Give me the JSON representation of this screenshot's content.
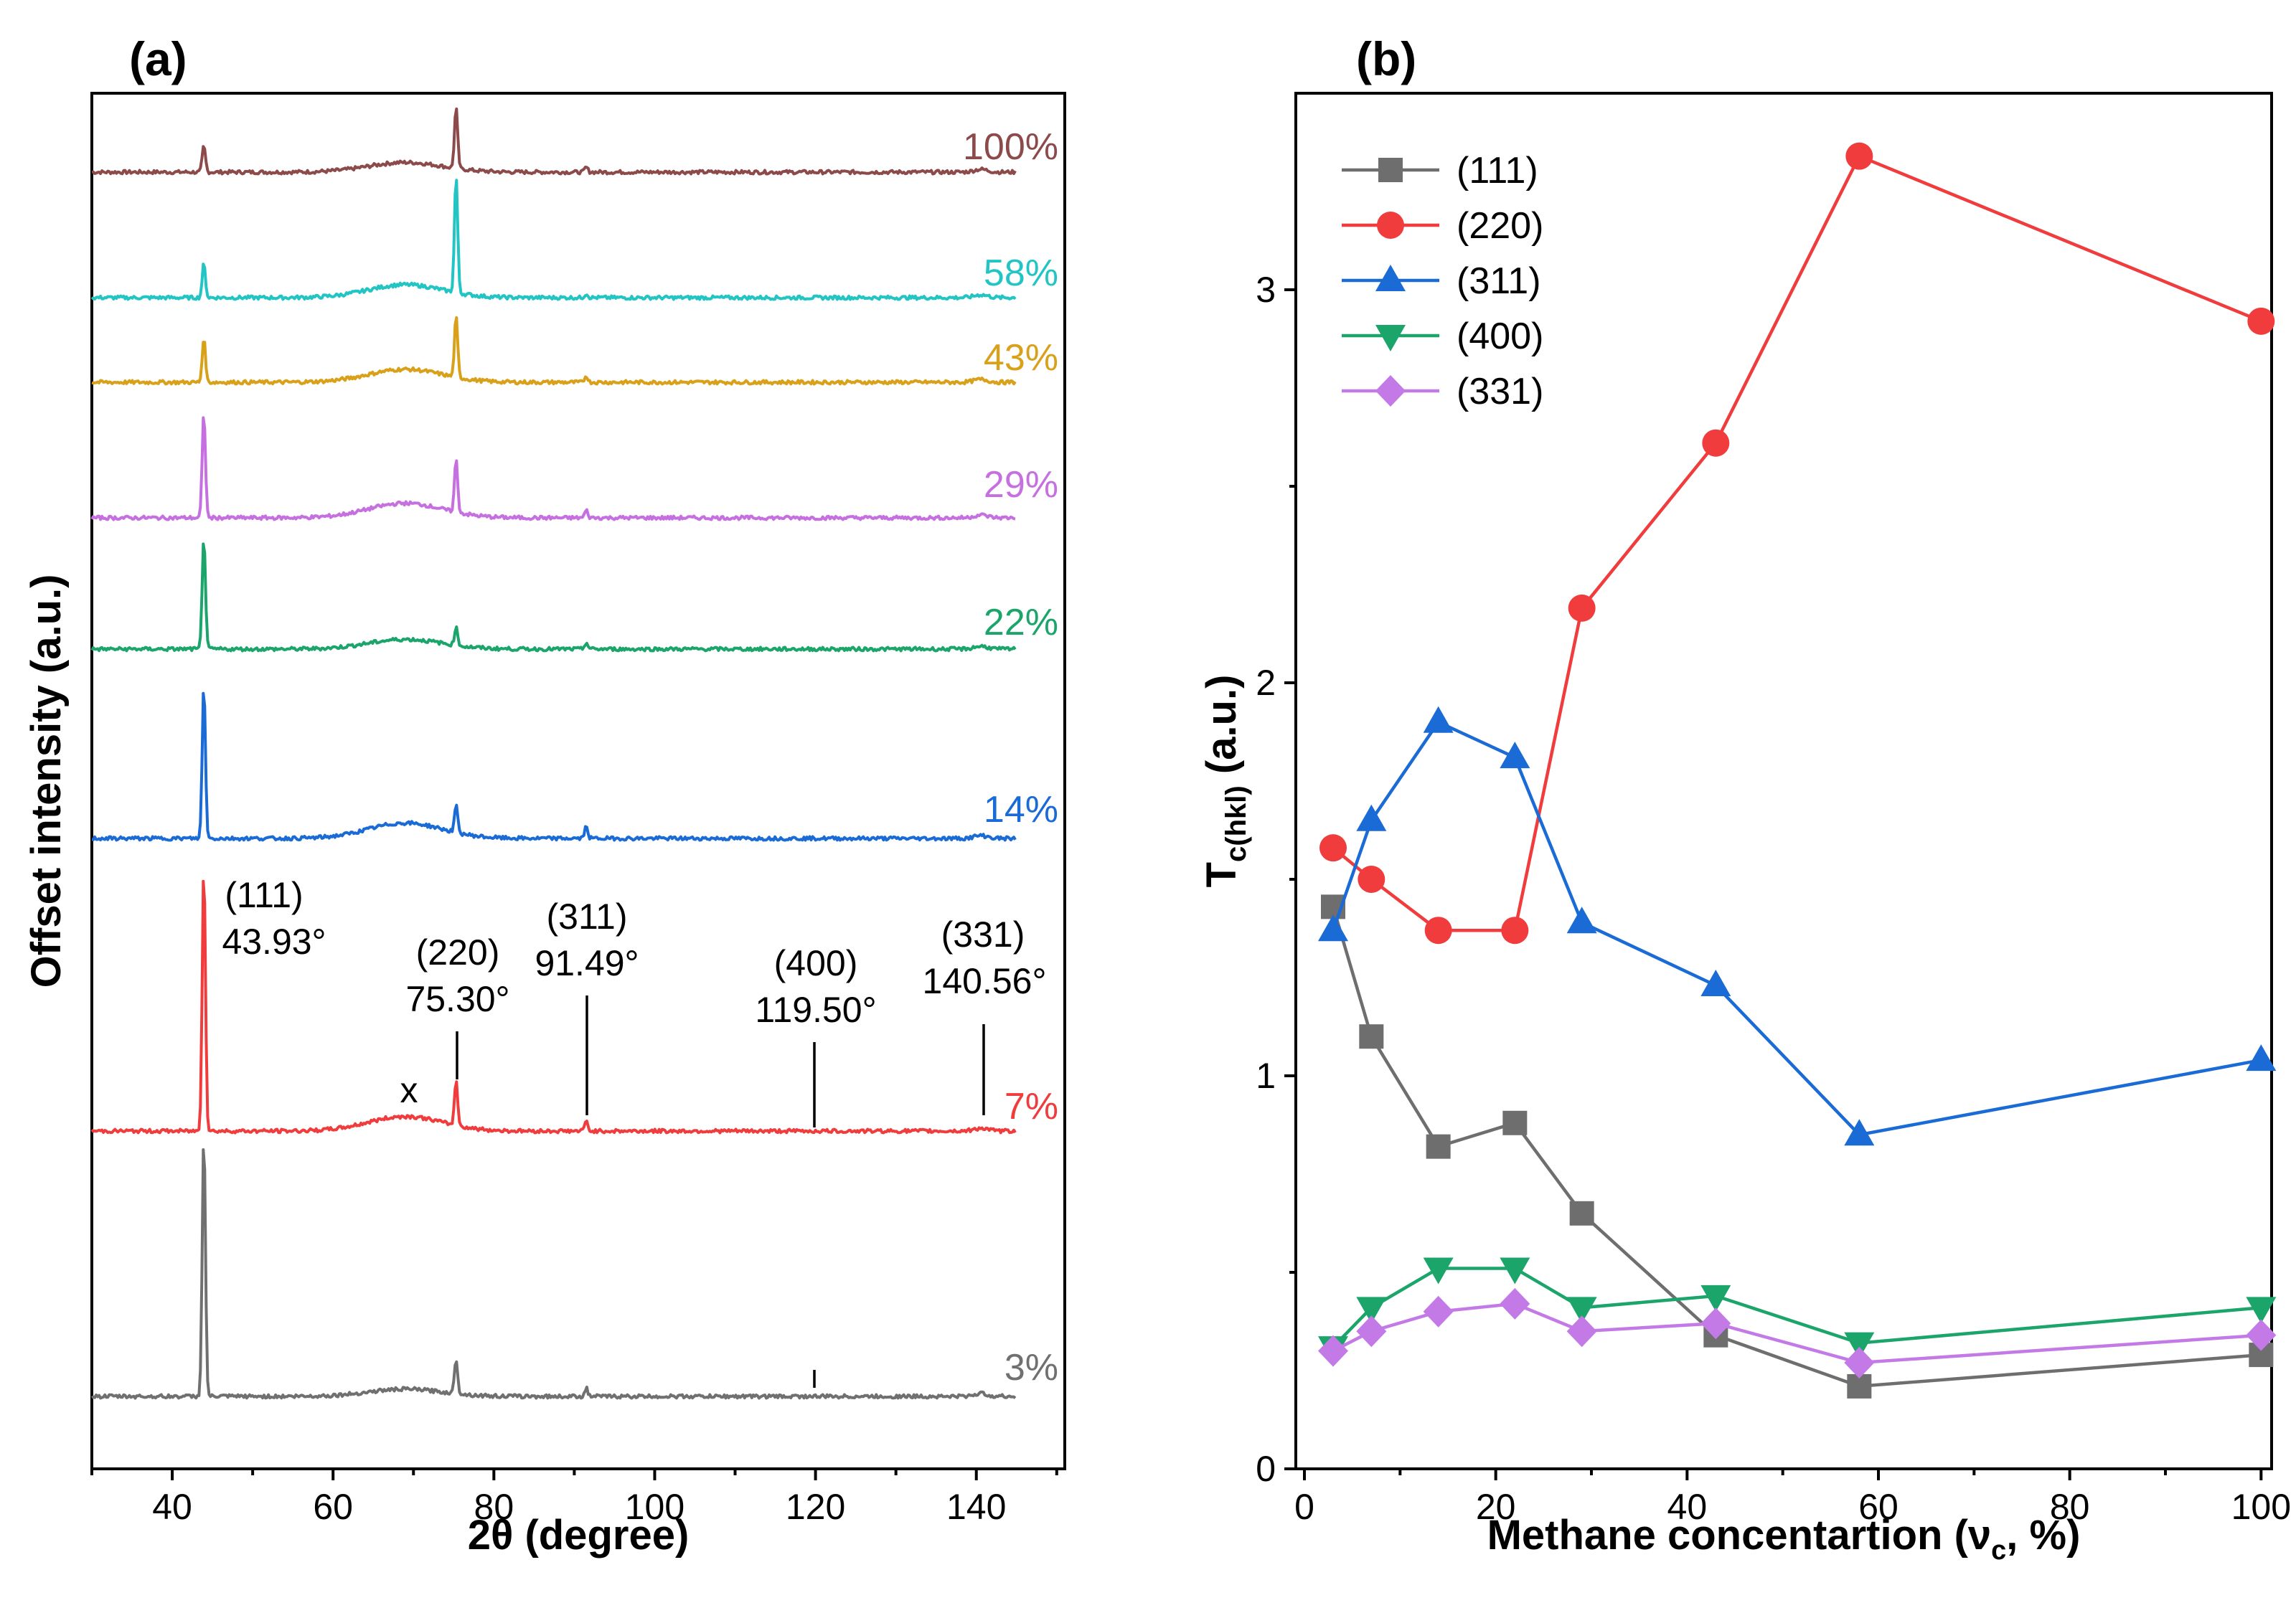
{
  "panel_a": {
    "label": "(a)",
    "annotations": {
      "peak_111": [
        "(111)",
        "43.93°"
      ],
      "peak_220": [
        "(220)",
        "75.30°"
      ],
      "peak_311": [
        "(311)",
        "91.49°"
      ],
      "peak_400": [
        "(400)",
        "119.50°"
      ],
      "peak_331": [
        "(331)",
        "140.56°"
      ],
      "x_mark": "x"
    }
  },
  "panel_b": {
    "label": "(b)"
  },
  "chart_data": [
    {
      "type": "line",
      "title": "(a)",
      "xlabel": "2θ (degree)",
      "ylabel": "Offset intensity (a.u.)",
      "xlim": [
        30,
        151
      ],
      "xticks": [
        40,
        60,
        80,
        100,
        120,
        140
      ],
      "yticks_shown": false,
      "peak_positions": [
        43.93,
        75.3,
        91.49,
        119.5,
        140.56
      ],
      "broad_feature_center": 69,
      "series": [
        {
          "name": "100%",
          "color": "#8c4a4a",
          "peaks": [
            {
              "x": 43.93,
              "h": 3.2
            },
            {
              "x": 75.3,
              "h": 7.5
            },
            {
              "x": 91.49,
              "h": 0.6
            }
          ],
          "hump": 1.2
        },
        {
          "name": "58%",
          "color": "#22c4c4",
          "peaks": [
            {
              "x": 43.93,
              "h": 4.2
            },
            {
              "x": 75.3,
              "h": 14.5
            },
            {
              "x": 91.49,
              "h": 0.5
            }
          ],
          "hump": 1.6
        },
        {
          "name": "43%",
          "color": "#d9a019",
          "peaks": [
            {
              "x": 43.93,
              "h": 5.5
            },
            {
              "x": 75.3,
              "h": 7.5
            },
            {
              "x": 91.49,
              "h": 0.8
            }
          ],
          "hump": 1.6
        },
        {
          "name": "29%",
          "color": "#c66fe0",
          "peaks": [
            {
              "x": 43.93,
              "h": 13.0
            },
            {
              "x": 75.3,
              "h": 6.5
            },
            {
              "x": 91.49,
              "h": 0.9
            }
          ],
          "hump": 1.8
        },
        {
          "name": "22%",
          "color": "#1ca56a",
          "peaks": [
            {
              "x": 43.93,
              "h": 14.0
            },
            {
              "x": 75.3,
              "h": 2.2
            },
            {
              "x": 91.49,
              "h": 0.8
            }
          ],
          "hump": 1.2
        },
        {
          "name": "14%",
          "color": "#1a6bd6",
          "peaks": [
            {
              "x": 43.93,
              "h": 19.0
            },
            {
              "x": 75.3,
              "h": 3.3
            },
            {
              "x": 91.49,
              "h": 1.5
            }
          ],
          "hump": 1.9
        },
        {
          "name": "7%",
          "color": "#f03c3c",
          "peaks": [
            {
              "x": 43.93,
              "h": 33.0
            },
            {
              "x": 75.3,
              "h": 5.5
            },
            {
              "x": 91.49,
              "h": 1.2
            }
          ],
          "hump": 1.8
        },
        {
          "name": "3%",
          "color": "#707070",
          "peaks": [
            {
              "x": 43.93,
              "h": 32.5
            },
            {
              "x": 75.3,
              "h": 4.3
            },
            {
              "x": 91.49,
              "h": 1.0
            }
          ],
          "hump": 0.9
        }
      ]
    },
    {
      "type": "line",
      "title": "(b)",
      "xlabel": "Methane concentartion (νc, %)",
      "ylabel": "Tc(hkl) (a.u.)",
      "xlim": [
        0,
        102
      ],
      "ylim": [
        0,
        3.5
      ],
      "xticks": [
        0,
        20,
        40,
        60,
        80,
        100
      ],
      "yticks": [
        0,
        1,
        2,
        3
      ],
      "legend_position": "top-left",
      "x": [
        3,
        7,
        14,
        22,
        29,
        43,
        58,
        100
      ],
      "series": [
        {
          "name": "(111)",
          "marker": "square",
          "color": "#6e6e6e",
          "values": [
            1.43,
            1.1,
            0.82,
            0.88,
            0.65,
            0.34,
            0.21,
            0.29
          ]
        },
        {
          "name": "(220)",
          "marker": "circle",
          "color": "#f03c3c",
          "values": [
            1.58,
            1.5,
            1.37,
            1.37,
            2.19,
            2.61,
            3.34,
            2.92
          ]
        },
        {
          "name": "(311)",
          "marker": "triangle-up",
          "color": "#1a6bd6",
          "values": [
            1.37,
            1.65,
            1.9,
            1.81,
            1.39,
            1.23,
            0.85,
            1.04
          ]
        },
        {
          "name": "(400)",
          "marker": "triangle-down",
          "color": "#1ca56a",
          "values": [
            0.31,
            0.41,
            0.51,
            0.51,
            0.41,
            0.44,
            0.32,
            0.41
          ]
        },
        {
          "name": "(331)",
          "marker": "diamond",
          "color": "#c47ae6",
          "values": [
            0.3,
            0.35,
            0.4,
            0.42,
            0.35,
            0.37,
            0.27,
            0.34
          ]
        }
      ]
    }
  ]
}
